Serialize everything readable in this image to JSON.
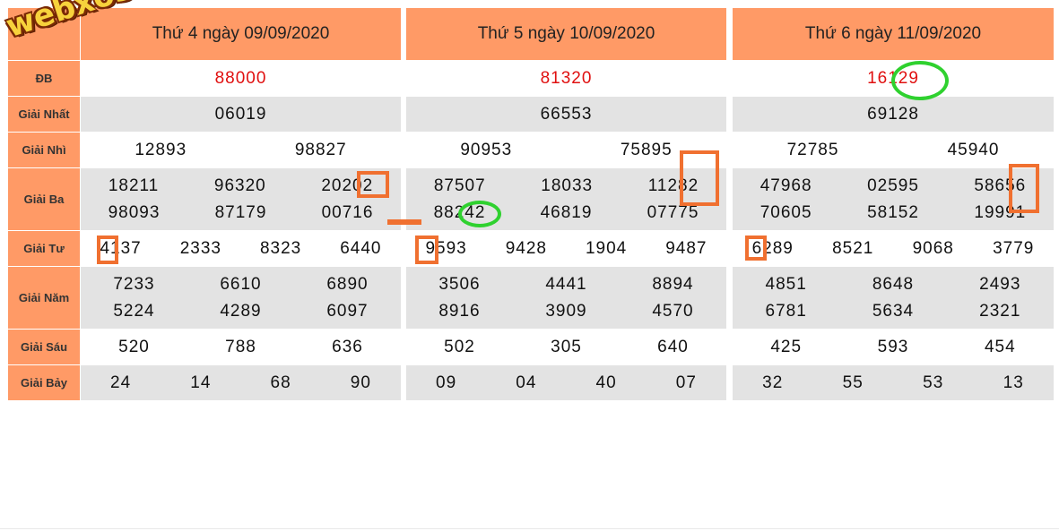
{
  "labels": [
    "Giải Nhất",
    "Giải Nhì",
    "Giải Ba",
    "Giải Tư",
    "Giải Năm",
    "Giải Sáu",
    "Giải Bảy"
  ],
  "special_label": "ĐB",
  "logo_text": "webxoso.net",
  "columns": [
    {
      "header": "Thứ 4 ngày 09/09/2020",
      "special": "88000",
      "nhat": [
        "06019"
      ],
      "nhi": [
        "12893",
        "98827"
      ],
      "ba": [
        [
          "18211",
          "96320",
          "20202"
        ],
        [
          "98093",
          "87179",
          "00716"
        ]
      ],
      "tu": [
        "4137",
        "2333",
        "8323",
        "6440"
      ],
      "nam": [
        [
          "7233",
          "6610",
          "6890"
        ],
        [
          "5224",
          "4289",
          "6097"
        ]
      ],
      "sau": [
        "520",
        "788",
        "636"
      ],
      "bay": [
        "24",
        "14",
        "68",
        "90"
      ]
    },
    {
      "header": "Thứ 5 ngày 10/09/2020",
      "special": "81320",
      "nhat": [
        "66553"
      ],
      "nhi": [
        "90953",
        "75895"
      ],
      "ba": [
        [
          "87507",
          "18033",
          "11282"
        ],
        [
          "88242",
          "46819",
          "07775"
        ]
      ],
      "tu": [
        "9593",
        "9428",
        "1904",
        "9487"
      ],
      "nam": [
        [
          "3506",
          "4441",
          "8894"
        ],
        [
          "8916",
          "3909",
          "4570"
        ]
      ],
      "sau": [
        "502",
        "305",
        "640"
      ],
      "bay": [
        "09",
        "04",
        "40",
        "07"
      ]
    },
    {
      "header": "Thứ 6 ngày 11/09/2020",
      "special": "16129",
      "nhat": [
        "69128"
      ],
      "nhi": [
        "72785",
        "45940"
      ],
      "ba": [
        [
          "47968",
          "02595",
          "58656"
        ],
        [
          "70605",
          "58152",
          "19991"
        ]
      ],
      "tu": [
        "6289",
        "8521",
        "9068",
        "3779"
      ],
      "nam": [
        [
          "4851",
          "8648",
          "2493"
        ],
        [
          "6781",
          "5634",
          "2321"
        ]
      ],
      "sau": [
        "425",
        "593",
        "454"
      ],
      "bay": [
        "32",
        "55",
        "53",
        "13"
      ]
    }
  ],
  "colors": {
    "header_bg": "#ff9a66",
    "gray_row": "#e3e3e3",
    "special_text": "#e01010",
    "mark_orange": "#f07030",
    "mark_green": "#2fd12f"
  }
}
